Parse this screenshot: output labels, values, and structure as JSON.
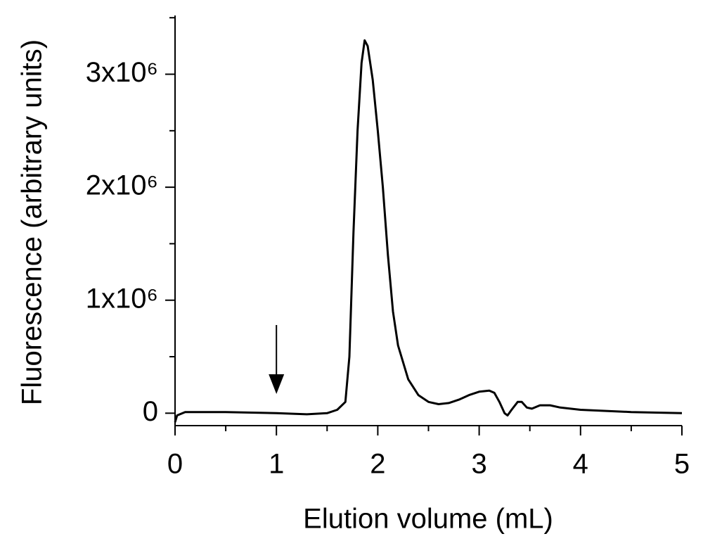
{
  "chart_data": {
    "type": "line",
    "x_label": "Elution volume (mL)",
    "y_label": "Fluorescence (arbitrary units)",
    "x": [
      0,
      0.02,
      0.1,
      0.5,
      1.0,
      1.3,
      1.5,
      1.6,
      1.68,
      1.72,
      1.76,
      1.8,
      1.84,
      1.87,
      1.9,
      1.95,
      2.0,
      2.05,
      2.1,
      2.15,
      2.2,
      2.3,
      2.4,
      2.5,
      2.6,
      2.7,
      2.8,
      2.9,
      3.0,
      3.1,
      3.15,
      3.2,
      3.25,
      3.28,
      3.32,
      3.38,
      3.42,
      3.47,
      3.52,
      3.6,
      3.7,
      3.8,
      4.0,
      4.5,
      5.0
    ],
    "series": [
      {
        "color": "#000000",
        "values": [
          -80000,
          -20000,
          10000,
          10000,
          0,
          -10000,
          0,
          30000,
          100000,
          500000,
          1600000,
          2500000,
          3100000,
          3300000,
          3250000,
          2950000,
          2500000,
          2000000,
          1400000,
          900000,
          600000,
          300000,
          160000,
          100000,
          80000,
          90000,
          120000,
          160000,
          190000,
          200000,
          180000,
          100000,
          0,
          -20000,
          30000,
          100000,
          100000,
          50000,
          40000,
          70000,
          70000,
          50000,
          30000,
          10000,
          0
        ]
      }
    ],
    "xlim": [
      0,
      5
    ],
    "xticks": [
      0,
      1,
      2,
      3,
      4,
      5
    ],
    "x_minor_ticks": [
      0.5,
      1.5,
      2.5,
      3.5,
      4.5
    ],
    "ylim": [
      -110000,
      3520000
    ],
    "yticks": [
      {
        "value": 0,
        "label": "0"
      },
      {
        "value": 1000000,
        "label": "1x10⁶"
      },
      {
        "value": 2000000,
        "label": "2x10⁶"
      },
      {
        "value": 3000000,
        "label": "3x10⁶"
      }
    ],
    "y_minor_ticks": [
      500000,
      1500000,
      2500000,
      3500000
    ],
    "annotation_arrow": {
      "x": 1,
      "y_start": 780000,
      "y_end": 170000
    },
    "grid": false
  }
}
